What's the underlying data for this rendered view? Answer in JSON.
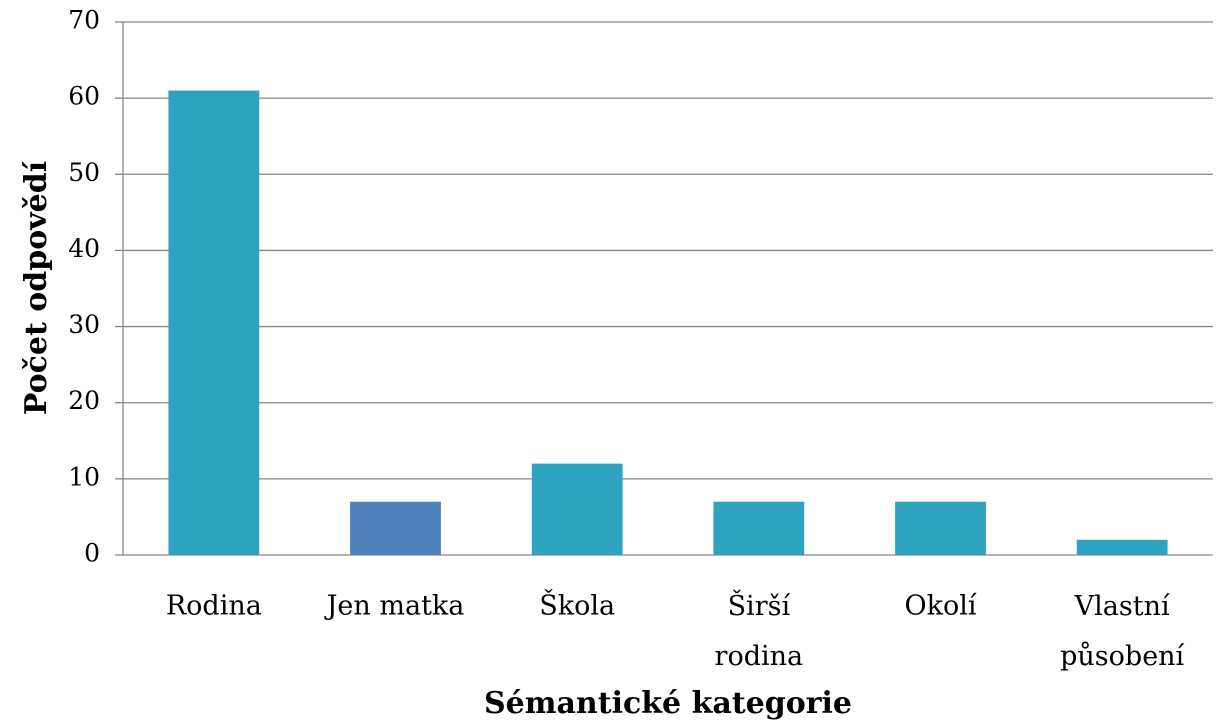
{
  "chart_data": {
    "type": "bar",
    "x_label": "Sémantické kategorie",
    "y_label": "Počet odpovědí",
    "categories": [
      "Rodina",
      "Jen matka",
      "Škola",
      "Širší rodina",
      "Okolí",
      "Vlastní působení"
    ],
    "values": [
      61,
      7,
      12,
      7,
      7,
      2
    ],
    "colors": [
      "#2ea3bf",
      "#4f81bd",
      "#2ea3bf",
      "#2ea3bf",
      "#2ea3bf",
      "#2ea3bf"
    ],
    "ylim": [
      0,
      70
    ],
    "yticks": [
      0,
      10,
      20,
      30,
      40,
      50,
      60,
      70
    ],
    "grid": true
  }
}
